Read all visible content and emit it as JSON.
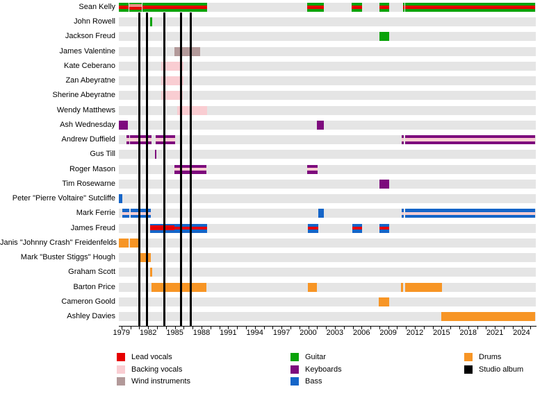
{
  "chart_data": {
    "type": "timeline",
    "title": "",
    "x_axis": {
      "min": 1978.7,
      "max": 2025.6,
      "minor_tick_start": 1979,
      "minor_tick_end": 2025,
      "minor_tick_step": 1,
      "tick_labels": [
        "1979",
        "1982",
        "1985",
        "1988",
        "1991",
        "1994",
        "1997",
        "2000",
        "2003",
        "2006",
        "2009",
        "2012",
        "2015",
        "2018",
        "2021",
        "2024"
      ],
      "tick_label_years": [
        1979,
        1982,
        1985,
        1988,
        1991,
        1994,
        1997,
        2000,
        2003,
        2006,
        2009,
        2012,
        2015,
        2018,
        2021,
        2024
      ]
    },
    "palette": {
      "lead": "#e60000",
      "lead_light": "#ec8f86",
      "backing": "#f9cdd2",
      "wind": "#b29999",
      "guitar": "#0aa30a",
      "keys": "#7d0a7d",
      "bass": "#1565c8",
      "drums": "#f79525",
      "album": "#000000",
      "track": "#e5e5e5"
    },
    "studio_album_years": [
      1981.0,
      1981.86,
      1983.8,
      1985.72,
      1986.81
    ],
    "members": [
      {
        "name": "Sean Kelly",
        "segments": [
          {
            "start": 1978.7,
            "end": 1979.8,
            "stripes": [
              [
                "guitar",
                31
              ],
              [
                "lead",
                38
              ],
              [
                "guitar",
                31
              ]
            ]
          },
          {
            "start": 1979.88,
            "end": 1981.32,
            "stripes": [
              [
                "guitar",
                14
              ],
              [
                "lead_light",
                29
              ],
              [
                "lead",
                36
              ],
              [
                "guitar",
                21
              ]
            ]
          },
          {
            "start": 1981.38,
            "end": 1988.6,
            "stripes": [
              [
                "guitar",
                31
              ],
              [
                "lead",
                38
              ],
              [
                "guitar",
                31
              ]
            ]
          },
          {
            "start": 1999.86,
            "end": 2001.79,
            "stripes": [
              [
                "guitar",
                31
              ],
              [
                "lead",
                38
              ],
              [
                "guitar",
                31
              ]
            ]
          },
          {
            "start": 2004.86,
            "end": 2006.09,
            "stripes": [
              [
                "guitar",
                31
              ],
              [
                "lead",
                38
              ],
              [
                "guitar",
                31
              ]
            ]
          },
          {
            "start": 2007.98,
            "end": 2009.13,
            "stripes": [
              [
                "guitar",
                31
              ],
              [
                "lead",
                38
              ],
              [
                "guitar",
                31
              ]
            ]
          },
          {
            "start": 2010.64,
            "end": 2010.8,
            "stripes": [
              [
                "guitar",
                31
              ],
              [
                "lead",
                38
              ],
              [
                "guitar",
                31
              ]
            ]
          },
          {
            "start": 2010.9,
            "end": 2025.56,
            "stripes": [
              [
                "guitar",
                31
              ],
              [
                "lead",
                38
              ],
              [
                "guitar",
                31
              ]
            ]
          }
        ]
      },
      {
        "name": "John Rowell",
        "segments": [
          {
            "start": 1982.2,
            "end": 1982.46,
            "stripes": [
              [
                "guitar",
                100
              ]
            ]
          }
        ]
      },
      {
        "name": "Jackson Freud",
        "segments": [
          {
            "start": 2007.98,
            "end": 2009.08,
            "stripes": [
              [
                "guitar",
                100
              ]
            ]
          }
        ]
      },
      {
        "name": "James Valentine",
        "segments": [
          {
            "start": 1984.94,
            "end": 1987.83,
            "stripes": [
              [
                "wind",
                100
              ]
            ]
          }
        ]
      },
      {
        "name": "Kate Ceberano",
        "segments": [
          {
            "start": 1983.43,
            "end": 1985.98,
            "stripes": [
              [
                "backing",
                100
              ]
            ]
          }
        ]
      },
      {
        "name": "Zan Abeyratne",
        "segments": [
          {
            "start": 1983.43,
            "end": 1985.98,
            "stripes": [
              [
                "backing",
                100
              ]
            ]
          }
        ]
      },
      {
        "name": "Sherine Abeyratne",
        "segments": [
          {
            "start": 1983.43,
            "end": 1985.9,
            "stripes": [
              [
                "backing",
                100
              ]
            ]
          }
        ]
      },
      {
        "name": "Wendy Matthews",
        "segments": [
          {
            "start": 1985.25,
            "end": 1988.63,
            "stripes": [
              [
                "backing",
                100
              ]
            ]
          }
        ]
      },
      {
        "name": "Ash Wednesday",
        "segments": [
          {
            "start": 1978.69,
            "end": 1979.73,
            "stripes": [
              [
                "keys",
                100
              ]
            ]
          },
          {
            "start": 2000.95,
            "end": 2001.73,
            "stripes": [
              [
                "keys",
                100
              ]
            ]
          }
        ]
      },
      {
        "name": "Andrew Duffield",
        "segments": [
          {
            "start": 1979.52,
            "end": 1979.84,
            "stripes": [
              [
                "keys",
                32
              ],
              [
                "backing",
                36
              ],
              [
                "keys",
                32
              ]
            ]
          },
          {
            "start": 1979.94,
            "end": 1982.34,
            "stripes": [
              [
                "keys",
                32
              ],
              [
                "backing",
                36
              ],
              [
                "keys",
                32
              ]
            ]
          },
          {
            "start": 1982.85,
            "end": 1985.04,
            "stripes": [
              [
                "keys",
                32
              ],
              [
                "backing",
                36
              ],
              [
                "keys",
                32
              ]
            ]
          },
          {
            "start": 2010.51,
            "end": 2010.77,
            "stripes": [
              [
                "keys",
                32
              ],
              [
                "backing",
                36
              ],
              [
                "keys",
                32
              ]
            ]
          },
          {
            "start": 2010.9,
            "end": 2025.56,
            "stripes": [
              [
                "keys",
                32
              ],
              [
                "backing",
                36
              ],
              [
                "keys",
                32
              ]
            ]
          }
        ]
      },
      {
        "name": "Gus Till",
        "segments": [
          {
            "start": 1982.73,
            "end": 1982.96,
            "stripes": [
              [
                "keys",
                100
              ]
            ]
          }
        ]
      },
      {
        "name": "Roger Mason",
        "segments": [
          {
            "start": 1984.94,
            "end": 1988.59,
            "stripes": [
              [
                "keys",
                32
              ],
              [
                "backing",
                36
              ],
              [
                "keys",
                32
              ]
            ]
          },
          {
            "start": 1999.86,
            "end": 2001.05,
            "stripes": [
              [
                "keys",
                32
              ],
              [
                "backing",
                36
              ],
              [
                "keys",
                32
              ]
            ]
          }
        ]
      },
      {
        "name": "Tim Rosewarne",
        "segments": [
          {
            "start": 2007.98,
            "end": 2009.08,
            "stripes": [
              [
                "keys",
                100
              ]
            ]
          }
        ]
      },
      {
        "name": "Peter \"Pierre Voltaire\" Sutcliffe",
        "segments": [
          {
            "start": 1978.69,
            "end": 1979.13,
            "stripes": [
              [
                "bass",
                100
              ]
            ]
          }
        ]
      },
      {
        "name": "Mark Ferrie",
        "segments": [
          {
            "start": 1979.05,
            "end": 1979.88,
            "stripes": [
              [
                "bass",
                32
              ],
              [
                "backing",
                36
              ],
              [
                "bass",
                32
              ]
            ]
          },
          {
            "start": 1980.02,
            "end": 1982.3,
            "stripes": [
              [
                "bass",
                32
              ],
              [
                "backing",
                36
              ],
              [
                "bass",
                32
              ]
            ]
          },
          {
            "start": 2001.13,
            "end": 2001.79,
            "stripes": [
              [
                "bass",
                100
              ]
            ]
          },
          {
            "start": 2010.51,
            "end": 2010.77,
            "stripes": [
              [
                "bass",
                32
              ],
              [
                "backing",
                36
              ],
              [
                "bass",
                32
              ]
            ]
          },
          {
            "start": 2010.9,
            "end": 2025.56,
            "stripes": [
              [
                "bass",
                32
              ],
              [
                "backing",
                36
              ],
              [
                "bass",
                32
              ]
            ]
          }
        ]
      },
      {
        "name": "James Freud",
        "segments": [
          {
            "start": 1982.2,
            "end": 1984.94,
            "stripes": [
              [
                "bass",
                17
              ],
              [
                "lead",
                58
              ],
              [
                "bass",
                25
              ]
            ]
          },
          {
            "start": 1984.94,
            "end": 1988.63,
            "stripes": [
              [
                "bass",
                33
              ],
              [
                "lead",
                34
              ],
              [
                "bass",
                33
              ]
            ]
          },
          {
            "start": 1999.96,
            "end": 2001.11,
            "stripes": [
              [
                "bass",
                33
              ],
              [
                "lead",
                34
              ],
              [
                "bass",
                33
              ]
            ]
          },
          {
            "start": 2004.96,
            "end": 2006.05,
            "stripes": [
              [
                "bass",
                33
              ],
              [
                "lead",
                34
              ],
              [
                "bass",
                33
              ]
            ]
          },
          {
            "start": 2007.98,
            "end": 2009.08,
            "stripes": [
              [
                "bass",
                33
              ],
              [
                "lead",
                34
              ],
              [
                "bass",
                33
              ]
            ]
          }
        ]
      },
      {
        "name": "Janis \"Johnny Crash\" Freidenfelds",
        "segments": [
          {
            "start": 1978.69,
            "end": 1979.8,
            "stripes": [
              [
                "drums",
                100
              ]
            ]
          },
          {
            "start": 1979.96,
            "end": 1981.16,
            "stripes": [
              [
                "drums",
                100
              ]
            ]
          }
        ]
      },
      {
        "name": "Mark \"Buster Stiggs\" Hough",
        "segments": [
          {
            "start": 1981.09,
            "end": 1982.26,
            "stripes": [
              [
                "drums",
                100
              ]
            ]
          }
        ]
      },
      {
        "name": "Graham Scott",
        "segments": [
          {
            "start": 1982.2,
            "end": 1982.46,
            "stripes": [
              [
                "drums",
                100
              ]
            ]
          }
        ]
      },
      {
        "name": "Barton Price",
        "segments": [
          {
            "start": 1982.38,
            "end": 1988.59,
            "stripes": [
              [
                "drums",
                100
              ]
            ]
          },
          {
            "start": 1999.96,
            "end": 2000.98,
            "stripes": [
              [
                "drums",
                100
              ]
            ]
          },
          {
            "start": 2010.46,
            "end": 2010.7,
            "stripes": [
              [
                "drums",
                100
              ]
            ]
          },
          {
            "start": 2010.9,
            "end": 2015.02,
            "stripes": [
              [
                "drums",
                100
              ]
            ]
          }
        ]
      },
      {
        "name": "Cameron Goold",
        "segments": [
          {
            "start": 2007.93,
            "end": 2009.08,
            "stripes": [
              [
                "drums",
                100
              ]
            ]
          }
        ]
      },
      {
        "name": "Ashley Davies",
        "segments": [
          {
            "start": 2014.96,
            "end": 2025.56,
            "stripes": [
              [
                "drums",
                100
              ]
            ]
          }
        ]
      }
    ],
    "legend": {
      "columns": [
        {
          "items": [
            {
              "label": "Lead vocals",
              "color_key": "lead"
            },
            {
              "label": "Backing vocals",
              "color_key": "backing"
            },
            {
              "label": "Wind instruments",
              "color_key": "wind"
            }
          ]
        },
        {
          "items": [
            {
              "label": "Guitar",
              "color_key": "guitar"
            },
            {
              "label": "Keyboards",
              "color_key": "keys"
            },
            {
              "label": "Bass",
              "color_key": "bass"
            }
          ]
        },
        {
          "items": [
            {
              "label": "Drums",
              "color_key": "drums"
            },
            {
              "label": "Studio album",
              "color_key": "album"
            }
          ]
        }
      ]
    }
  }
}
